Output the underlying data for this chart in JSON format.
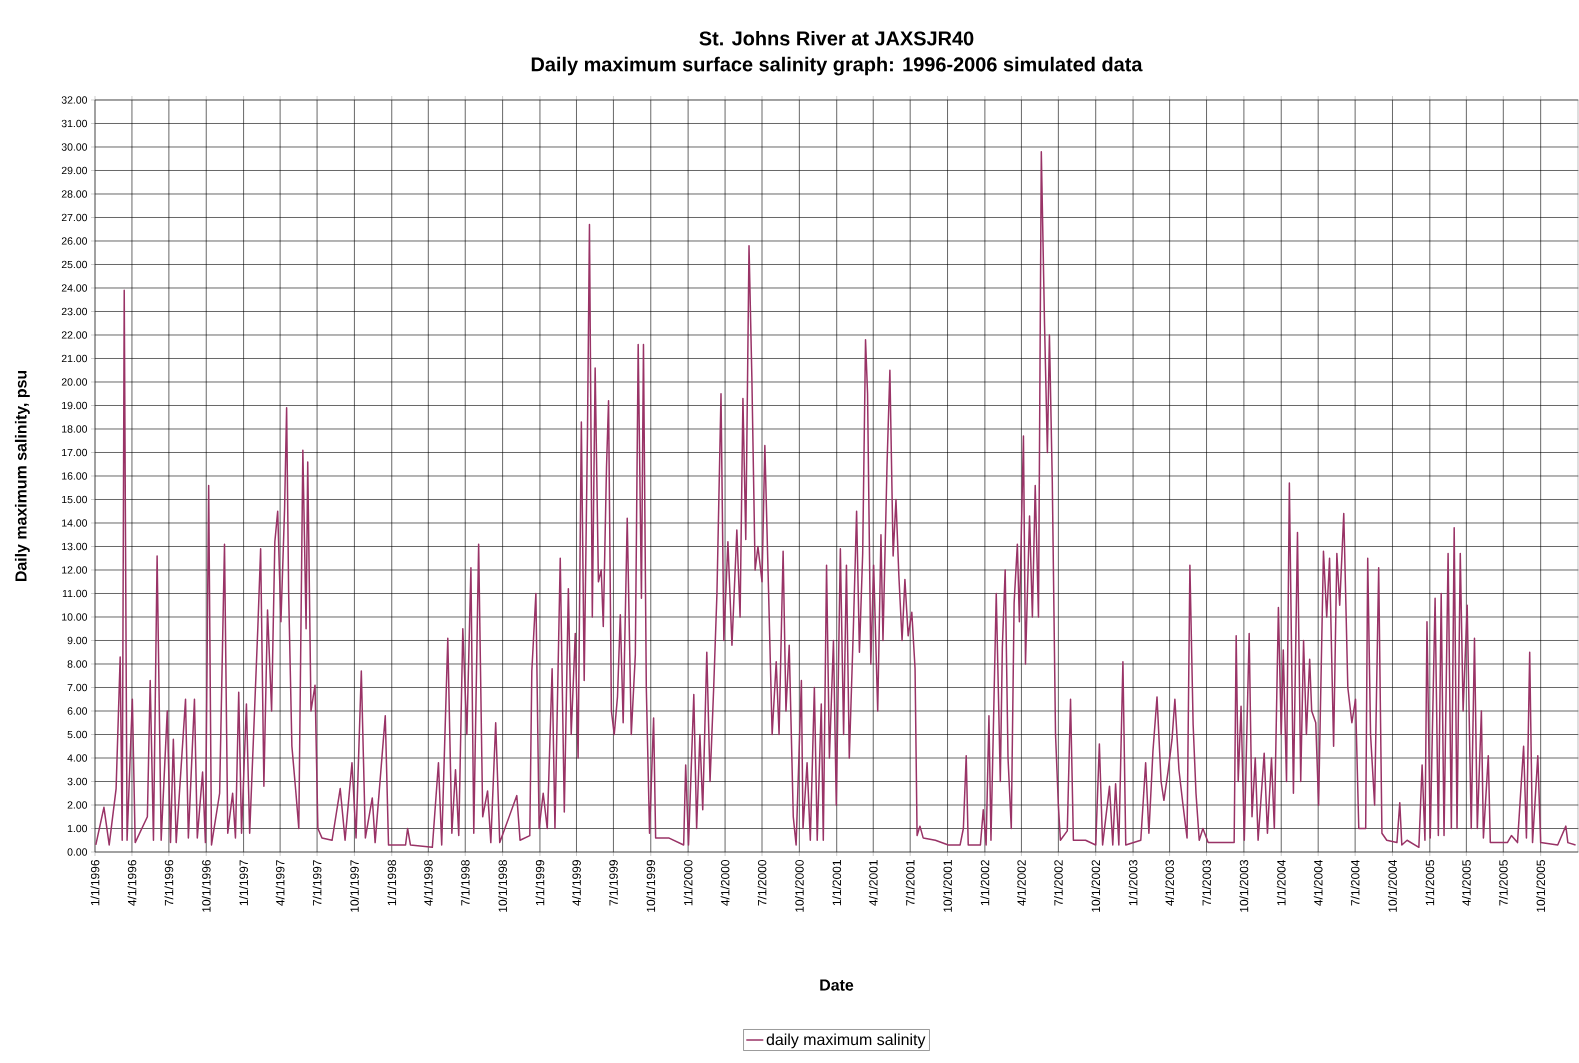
{
  "chart_data": {
    "type": "line",
    "title": "St. Johns River at JAXSJR40",
    "subtitle": "Daily maximum surface salinity graph: 1996-2006 simulated data",
    "xlabel": "Date",
    "ylabel": "Daily maximum salinity, psu",
    "xlim": [
      "1996-01-01",
      "2006-01-01"
    ],
    "ylim": [
      0,
      32
    ],
    "xticks": [
      {
        "value": "1996-01-01",
        "label": "1/1/1996"
      },
      {
        "value": "1996-04-01",
        "label": "4/1/1996"
      },
      {
        "value": "1996-07-01",
        "label": "7/1/1996"
      },
      {
        "value": "1996-10-01",
        "label": "10/1/1996"
      },
      {
        "value": "1997-01-01",
        "label": "1/1/1997"
      },
      {
        "value": "1997-04-01",
        "label": "4/1/1997"
      },
      {
        "value": "1997-07-01",
        "label": "7/1/1997"
      },
      {
        "value": "1997-10-01",
        "label": "10/1/1997"
      },
      {
        "value": "1998-01-01",
        "label": "1/1/1998"
      },
      {
        "value": "1998-04-01",
        "label": "4/1/1998"
      },
      {
        "value": "1998-07-01",
        "label": "7/1/1998"
      },
      {
        "value": "1998-10-01",
        "label": "10/1/1998"
      },
      {
        "value": "1999-01-01",
        "label": "1/1/1999"
      },
      {
        "value": "1999-04-01",
        "label": "4/1/1999"
      },
      {
        "value": "1999-07-01",
        "label": "7/1/1999"
      },
      {
        "value": "1999-10-01",
        "label": "10/1/1999"
      },
      {
        "value": "2000-01-01",
        "label": "1/1/2000"
      },
      {
        "value": "2000-04-01",
        "label": "4/1/2000"
      },
      {
        "value": "2000-07-01",
        "label": "7/1/2000"
      },
      {
        "value": "2000-10-01",
        "label": "10/1/2000"
      },
      {
        "value": "2001-01-01",
        "label": "1/1/2001"
      },
      {
        "value": "2001-04-01",
        "label": "4/1/2001"
      },
      {
        "value": "2001-07-01",
        "label": "7/1/2001"
      },
      {
        "value": "2001-10-01",
        "label": "10/1/2001"
      },
      {
        "value": "2002-01-01",
        "label": "1/1/2002"
      },
      {
        "value": "2002-04-01",
        "label": "4/1/2002"
      },
      {
        "value": "2002-07-01",
        "label": "7/1/2002"
      },
      {
        "value": "2002-10-01",
        "label": "10/1/2002"
      },
      {
        "value": "2003-01-01",
        "label": "1/1/2003"
      },
      {
        "value": "2003-04-01",
        "label": "4/1/2003"
      },
      {
        "value": "2003-07-01",
        "label": "7/1/2003"
      },
      {
        "value": "2003-10-01",
        "label": "10/1/2003"
      },
      {
        "value": "2004-01-01",
        "label": "1/1/2004"
      },
      {
        "value": "2004-04-01",
        "label": "4/1/2004"
      },
      {
        "value": "2004-07-01",
        "label": "7/1/2004"
      },
      {
        "value": "2004-10-01",
        "label": "10/1/2004"
      },
      {
        "value": "2005-01-01",
        "label": "1/1/2005"
      },
      {
        "value": "2005-04-01",
        "label": "4/1/2005"
      },
      {
        "value": "2005-07-01",
        "label": "7/1/2005"
      },
      {
        "value": "2005-10-01",
        "label": "10/1/2005"
      }
    ],
    "yticks": [
      {
        "value": 0,
        "label": "0.00"
      },
      {
        "value": 1,
        "label": "1.00"
      },
      {
        "value": 2,
        "label": "2.00"
      },
      {
        "value": 3,
        "label": "3.00"
      },
      {
        "value": 4,
        "label": "4.00"
      },
      {
        "value": 5,
        "label": "5.00"
      },
      {
        "value": 6,
        "label": "6.00"
      },
      {
        "value": 7,
        "label": "7.00"
      },
      {
        "value": 8,
        "label": "8.00"
      },
      {
        "value": 9,
        "label": "9.00"
      },
      {
        "value": 10,
        "label": "10.00"
      },
      {
        "value": 11,
        "label": "11.00"
      },
      {
        "value": 12,
        "label": "12.00"
      },
      {
        "value": 13,
        "label": "13.00"
      },
      {
        "value": 14,
        "label": "14.00"
      },
      {
        "value": 15,
        "label": "15.00"
      },
      {
        "value": 16,
        "label": "16.00"
      },
      {
        "value": 17,
        "label": "17.00"
      },
      {
        "value": 18,
        "label": "18.00"
      },
      {
        "value": 19,
        "label": "19.00"
      },
      {
        "value": 20,
        "label": "20.00"
      },
      {
        "value": 21,
        "label": "21.00"
      },
      {
        "value": 22,
        "label": "22.00"
      },
      {
        "value": 23,
        "label": "23.00"
      },
      {
        "value": 24,
        "label": "24.00"
      },
      {
        "value": 25,
        "label": "25.00"
      },
      {
        "value": 26,
        "label": "26.00"
      },
      {
        "value": 27,
        "label": "27.00"
      },
      {
        "value": 28,
        "label": "28.00"
      },
      {
        "value": 29,
        "label": "29.00"
      },
      {
        "value": 30,
        "label": "30.00"
      },
      {
        "value": 31,
        "label": "31.00"
      },
      {
        "value": 32,
        "label": "32.00"
      }
    ],
    "grid": true,
    "legend": "bottom",
    "marker": "none",
    "line_style": "solid",
    "series": [
      {
        "name": "daily maximum salinity",
        "color": "#993366",
        "x": [
          "1996-01-03",
          "1996-01-23",
          "1996-02-05",
          "1996-02-22",
          "1996-03-03",
          "1996-03-08",
          "1996-03-13",
          "1996-03-20",
          "1996-04-02",
          "1996-04-09",
          "1996-05-09",
          "1996-05-16",
          "1996-05-24",
          "1996-06-02",
          "1996-06-12",
          "1996-06-27",
          "1996-07-05",
          "1996-07-12",
          "1996-07-19",
          "1996-08-11",
          "1996-08-18",
          "1996-09-02",
          "1996-09-09",
          "1996-09-22",
          "1996-09-29",
          "1996-10-07",
          "1996-10-14",
          "1996-11-03",
          "1996-11-15",
          "1996-11-23",
          "1996-12-05",
          "1996-12-12",
          "1996-12-20",
          "1996-12-27",
          "1997-01-08",
          "1997-01-16",
          "1997-02-05",
          "1997-02-12",
          "1997-02-20",
          "1997-03-01",
          "1997-03-11",
          "1997-03-19",
          "1997-03-26",
          "1997-04-03",
          "1997-04-12",
          "1997-04-17",
          "1997-04-22",
          "1997-04-30",
          "1997-05-10",
          "1997-05-17",
          "1997-05-27",
          "1997-06-04",
          "1997-06-08",
          "1997-06-16",
          "1997-06-26",
          "1997-07-03",
          "1997-07-13",
          "1997-08-07",
          "1997-08-27",
          "1997-09-08",
          "1997-09-25",
          "1997-10-05",
          "1997-10-18",
          "1997-10-28",
          "1997-11-14",
          "1997-11-21",
          "1997-12-16",
          "1997-12-24",
          "1998-02-04",
          "1998-02-09",
          "1998-02-16",
          "1998-04-11",
          "1998-04-26",
          "1998-05-04",
          "1998-05-19",
          "1998-05-29",
          "1998-06-07",
          "1998-06-15",
          "1998-06-25",
          "1998-07-05",
          "1998-07-15",
          "1998-07-22",
          "1998-08-03",
          "1998-08-13",
          "1998-08-25",
          "1998-09-02",
          "1998-09-14",
          "1998-09-24",
          "1998-11-05",
          "1998-11-13",
          "1998-12-07",
          "1998-12-12",
          "1998-12-22",
          "1998-12-30",
          "1999-01-09",
          "1999-01-19",
          "1999-01-31",
          "1999-02-07",
          "1999-02-20",
          "1999-03-02",
          "1999-03-12",
          "1999-03-19",
          "1999-03-29",
          "1999-04-05",
          "1999-04-13",
          "1999-04-20",
          "1999-04-28",
          "1999-05-03",
          "1999-05-10",
          "1999-05-17",
          "1999-05-25",
          "1999-06-01",
          "1999-06-06",
          "1999-06-14",
          "1999-06-19",
          "1999-06-26",
          "1999-07-03",
          "1999-07-11",
          "1999-07-18",
          "1999-07-25",
          "1999-08-04",
          "1999-08-14",
          "1999-08-24",
          "1999-08-31",
          "1999-09-08",
          "1999-09-13",
          "1999-09-20",
          "1999-09-28",
          "1999-10-08",
          "1999-10-13",
          "1999-11-14",
          "1999-12-21",
          "1999-12-26",
          "2000-01-02",
          "2000-01-15",
          "2000-01-22",
          "2000-01-30",
          "2000-02-06",
          "2000-02-16",
          "2000-02-24",
          "2000-03-04",
          "2000-03-12",
          "2000-03-22",
          "2000-03-29",
          "2000-04-08",
          "2000-04-18",
          "2000-04-30",
          "2000-05-08",
          "2000-05-15",
          "2000-05-22",
          "2000-05-30",
          "2000-06-06",
          "2000-06-14",
          "2000-06-21",
          "2000-07-01",
          "2000-07-08",
          "2000-07-18",
          "2000-07-26",
          "2000-08-05",
          "2000-08-12",
          "2000-08-22",
          "2000-08-29",
          "2000-09-06",
          "2000-09-16",
          "2000-09-23",
          "2000-10-06",
          "2000-10-10",
          "2000-10-20",
          "2000-10-28",
          "2000-11-07",
          "2000-11-14",
          "2000-11-24",
          "2000-11-29",
          "2000-12-07",
          "2000-12-14",
          "2000-12-24",
          "2000-12-31",
          "2001-01-10",
          "2001-01-18",
          "2001-01-25",
          "2001-02-01",
          "2001-02-11",
          "2001-02-19",
          "2001-02-26",
          "2001-03-06",
          "2001-03-13",
          "2001-03-18",
          "2001-03-26",
          "2001-04-02",
          "2001-04-12",
          "2001-04-20",
          "2001-04-25",
          "2001-05-05",
          "2001-05-12",
          "2001-05-20",
          "2001-05-27",
          "2001-06-03",
          "2001-06-11",
          "2001-06-18",
          "2001-06-26",
          "2001-07-05",
          "2001-07-13",
          "2001-07-18",
          "2001-07-25",
          "2001-08-02",
          "2001-09-01",
          "2001-10-03",
          "2001-11-01",
          "2001-11-09",
          "2001-11-16",
          "2001-11-21",
          "2001-12-21",
          "2001-12-28",
          "2002-01-04",
          "2002-01-11",
          "2002-01-16",
          "2002-01-29",
          "2002-02-08",
          "2002-02-13",
          "2002-02-20",
          "2002-02-27",
          "2002-03-07",
          "2002-03-14",
          "2002-03-22",
          "2002-03-27",
          "2002-04-06",
          "2002-04-11",
          "2002-04-21",
          "2002-04-28",
          "2002-05-05",
          "2002-05-13",
          "2002-05-20",
          "2002-05-28",
          "2002-06-04",
          "2002-06-09",
          "2002-06-16",
          "2002-06-24",
          "2002-07-01",
          "2002-07-06",
          "2002-07-23",
          "2002-07-31",
          "2002-08-07",
          "2002-09-06",
          "2002-10-01",
          "2002-10-10",
          "2002-10-18",
          "2002-11-04",
          "2002-11-12",
          "2002-11-19",
          "2002-11-27",
          "2002-12-07",
          "2002-12-14",
          "2003-01-20",
          "2003-02-01",
          "2003-02-09",
          "2003-02-19",
          "2003-03-01",
          "2003-03-11",
          "2003-03-18",
          "2003-03-28",
          "2003-04-07",
          "2003-04-14",
          "2003-04-24",
          "2003-05-04",
          "2003-05-14",
          "2003-05-21",
          "2003-05-29",
          "2003-06-05",
          "2003-06-13",
          "2003-06-22",
          "2003-07-05",
          "2003-08-06",
          "2003-09-07",
          "2003-09-12",
          "2003-09-17",
          "2003-09-24",
          "2003-10-02",
          "2003-10-14",
          "2003-10-21",
          "2003-10-29",
          "2003-11-05",
          "2003-11-20",
          "2003-11-28",
          "2003-12-08",
          "2003-12-15",
          "2003-12-25",
          "2004-01-01",
          "2004-01-06",
          "2004-01-14",
          "2004-01-21",
          "2004-01-31",
          "2004-02-10",
          "2004-02-18",
          "2004-02-25",
          "2004-03-03",
          "2004-03-11",
          "2004-03-16",
          "2004-03-26",
          "2004-04-02",
          "2004-04-14",
          "2004-04-22",
          "2004-04-29",
          "2004-05-09",
          "2004-05-17",
          "2004-05-24",
          "2004-06-03",
          "2004-06-13",
          "2004-06-23",
          "2004-07-02",
          "2004-07-10",
          "2004-07-27",
          "2004-08-01",
          "2004-08-08",
          "2004-08-18",
          "2004-08-28",
          "2004-09-05",
          "2004-09-17",
          "2004-10-12",
          "2004-10-19",
          "2004-10-24",
          "2004-11-06",
          "2004-12-05",
          "2004-12-13",
          "2004-12-20",
          "2004-12-25",
          "2005-01-02",
          "2005-01-14",
          "2005-01-22",
          "2005-01-29",
          "2005-02-05",
          "2005-02-15",
          "2005-02-23",
          "2005-03-02",
          "2005-03-09",
          "2005-03-17",
          "2005-03-24",
          "2005-04-03",
          "2005-04-13",
          "2005-04-21",
          "2005-04-28",
          "2005-05-08",
          "2005-05-13",
          "2005-05-25",
          "2005-05-30",
          "2005-07-11",
          "2005-07-21",
          "2005-08-05",
          "2005-08-20",
          "2005-08-27",
          "2005-09-04",
          "2005-09-11",
          "2005-09-24",
          "2005-10-01",
          "2005-11-12",
          "2005-12-02",
          "2005-12-07",
          "2005-12-26"
        ],
        "values": [
          0.3,
          1.9,
          0.3,
          2.7,
          8.3,
          0.5,
          23.9,
          0.5,
          6.5,
          0.4,
          1.5,
          7.3,
          0.5,
          12.6,
          0.5,
          6.0,
          0.4,
          4.8,
          0.4,
          6.5,
          0.6,
          6.5,
          0.6,
          3.4,
          0.4,
          15.6,
          0.3,
          2.5,
          13.1,
          0.8,
          2.5,
          0.6,
          6.8,
          0.8,
          6.3,
          0.8,
          9.5,
          12.9,
          2.8,
          10.3,
          6.0,
          13.2,
          14.5,
          9.8,
          14.6,
          18.9,
          11.0,
          4.5,
          2.5,
          1.0,
          17.1,
          9.5,
          16.6,
          6.0,
          7.1,
          1.0,
          0.6,
          0.5,
          2.7,
          0.5,
          3.8,
          0.6,
          7.7,
          0.6,
          2.3,
          0.4,
          5.8,
          0.3,
          0.3,
          1.0,
          0.3,
          0.2,
          3.8,
          0.3,
          9.1,
          0.8,
          3.5,
          0.7,
          9.5,
          5.0,
          12.1,
          0.8,
          13.1,
          1.5,
          2.6,
          0.4,
          5.5,
          0.4,
          2.4,
          0.5,
          0.7,
          7.7,
          11.0,
          1.0,
          2.5,
          1.0,
          7.8,
          1.0,
          12.5,
          1.7,
          11.2,
          5.0,
          9.3,
          4.0,
          18.3,
          7.3,
          17.7,
          26.7,
          10.0,
          20.6,
          11.5,
          12.0,
          9.6,
          16.4,
          19.2,
          6.0,
          5.0,
          6.6,
          10.1,
          5.5,
          14.2,
          5.0,
          8.4,
          21.6,
          10.8,
          21.6,
          7.0,
          0.8,
          5.7,
          0.6,
          0.6,
          0.3,
          3.7,
          0.3,
          6.7,
          1.0,
          5.0,
          1.8,
          8.5,
          3.0,
          7.0,
          11.0,
          19.5,
          9.0,
          13.2,
          8.8,
          13.7,
          10.0,
          19.3,
          13.3,
          25.8,
          20.2,
          12.0,
          13.0,
          11.5,
          17.3,
          10.5,
          5.0,
          8.1,
          5.0,
          12.8,
          6.0,
          8.8,
          1.5,
          0.3,
          7.3,
          1.0,
          3.8,
          0.5,
          7.0,
          0.5,
          6.3,
          0.5,
          12.2,
          4.0,
          9.0,
          2.0,
          12.9,
          5.0,
          12.2,
          4.0,
          9.5,
          14.5,
          8.5,
          12.7,
          21.8,
          19.5,
          8.0,
          12.2,
          6.0,
          13.5,
          9.0,
          16.5,
          20.5,
          12.6,
          15.0,
          11.8,
          9.0,
          11.6,
          9.2,
          10.2,
          7.8,
          0.7,
          1.1,
          0.6,
          0.5,
          0.3,
          0.3,
          1.0,
          4.1,
          0.3,
          0.3,
          1.8,
          0.3,
          5.8,
          0.5,
          11.0,
          3.0,
          8.7,
          12.0,
          4.0,
          1.0,
          10.6,
          13.1,
          9.8,
          17.7,
          8.0,
          14.3,
          10.0,
          15.6,
          10.0,
          29.8,
          22.4,
          17.0,
          22.0,
          15.8,
          5.0,
          2.0,
          0.5,
          0.9,
          6.5,
          0.5,
          0.5,
          0.3,
          4.6,
          0.3,
          2.8,
          0.3,
          2.9,
          0.3,
          8.1,
          0.3,
          0.5,
          3.8,
          0.8,
          4.3,
          6.6,
          3.0,
          2.2,
          3.4,
          4.8,
          6.5,
          3.5,
          2.0,
          0.6,
          12.2,
          5.4,
          2.5,
          0.5,
          1.0,
          0.4,
          0.4,
          0.4,
          9.2,
          3.0,
          6.2,
          0.5,
          9.3,
          1.5,
          4.0,
          0.5,
          4.2,
          0.8,
          4.0,
          1.0,
          10.4,
          5.0,
          8.6,
          3.0,
          15.7,
          2.5,
          13.6,
          3.0,
          9.0,
          5.0,
          8.2,
          6.0,
          5.5,
          2.0,
          12.8,
          10.0,
          12.5,
          4.5,
          12.7,
          10.5,
          14.4,
          7.0,
          5.5,
          6.5,
          1.0,
          1.0,
          12.5,
          5.0,
          2.0,
          12.1,
          0.8,
          0.5,
          0.4,
          2.1,
          0.3,
          0.5,
          0.2,
          3.7,
          0.5,
          9.8,
          0.6,
          10.8,
          0.7,
          11.0,
          0.7,
          12.7,
          1.0,
          13.8,
          1.0,
          12.7,
          6.0,
          10.5,
          1.0,
          9.1,
          1.0,
          6.0,
          0.6,
          4.1,
          0.4,
          0.4,
          0.7,
          0.4,
          4.5,
          0.6,
          8.5,
          0.4,
          4.1,
          0.4,
          0.3,
          1.1,
          0.4,
          0.3
        ]
      }
    ]
  }
}
